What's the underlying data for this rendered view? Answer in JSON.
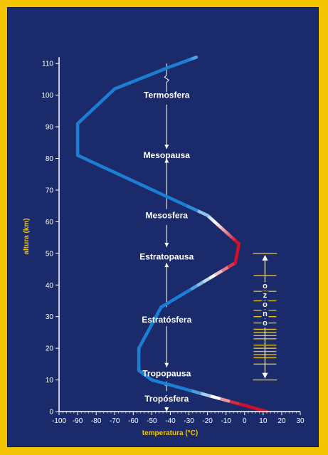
{
  "chart_data": {
    "type": "line",
    "xlabel": "temperatura (°C)",
    "ylabel": "altura (km)",
    "xlim": [
      -100,
      30
    ],
    "ylim": [
      0,
      115
    ],
    "xticks": [
      -100,
      -90,
      -80,
      -70,
      -60,
      -50,
      -40,
      -30,
      -20,
      -10,
      0,
      10,
      20,
      30
    ],
    "yticks": [
      0,
      10,
      20,
      30,
      40,
      50,
      60,
      70,
      80,
      90,
      100,
      110
    ],
    "grid": false,
    "series": [
      {
        "values": [
          {
            "x": 12,
            "y": 0
          },
          {
            "x": -50,
            "y": 10
          },
          {
            "x": -57,
            "y": 13
          },
          {
            "x": -57,
            "y": 20
          },
          {
            "x": -45,
            "y": 33
          },
          {
            "x": -5,
            "y": 47
          },
          {
            "x": -3,
            "y": 53
          },
          {
            "x": -20,
            "y": 62
          },
          {
            "x": -90,
            "y": 81
          },
          {
            "x": -90,
            "y": 91
          },
          {
            "x": -70,
            "y": 102
          },
          {
            "x": -40,
            "y": 109
          },
          {
            "x": -26,
            "y": 112
          }
        ]
      }
    ],
    "layers": [
      {
        "label": "Termosfera",
        "y": 100
      },
      {
        "label": "Mesopausa",
        "y": 81
      },
      {
        "label": "Mesosfera",
        "y": 62
      },
      {
        "label": "Estratopausa",
        "y": 49
      },
      {
        "label": "Estratósfera",
        "y": 29
      },
      {
        "label": "Tropopausa",
        "y": 12
      },
      {
        "label": "Tropósfera",
        "y": 4
      }
    ],
    "ozone": {
      "label": "ozono",
      "letters": [
        "o",
        "z",
        "o",
        "n",
        "o"
      ],
      "range_km": [
        10,
        50
      ],
      "band_heights": [
        10,
        15,
        17,
        18,
        19,
        20,
        21,
        23,
        24,
        25,
        26,
        28,
        30,
        32,
        35,
        38,
        43,
        50
      ]
    },
    "colors": {
      "line": "#1a7fd4",
      "warm": "#d0102a",
      "axis": "#ffffff",
      "ozone_band": "#e8c020",
      "axis_title": "#f2c500",
      "background": "#1a2a6a",
      "frame": "#f2c500"
    }
  }
}
